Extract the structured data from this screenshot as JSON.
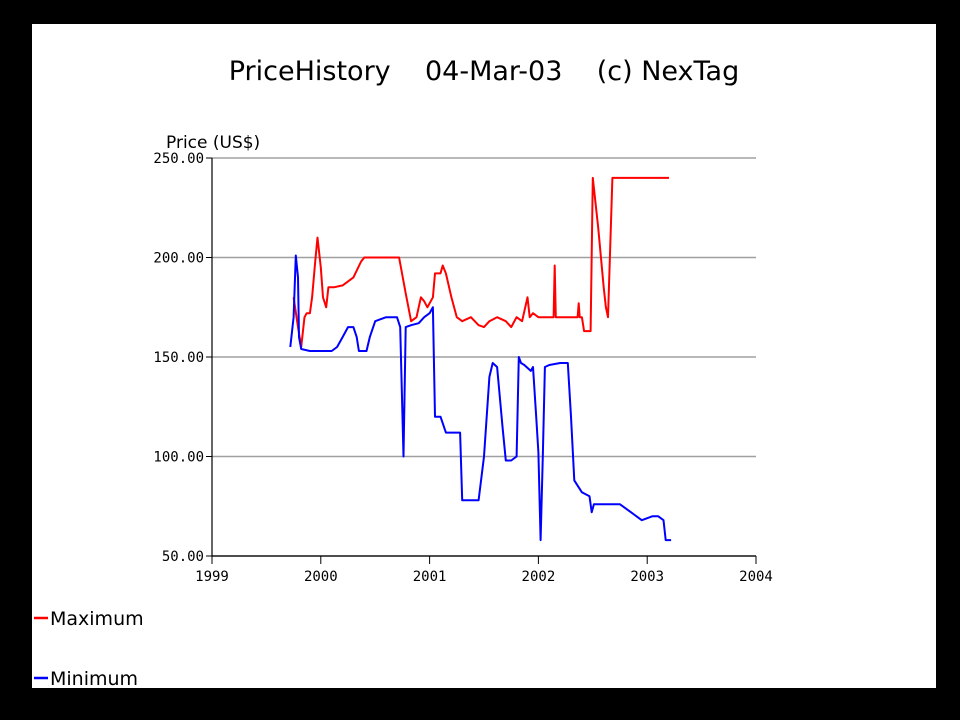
{
  "chart_data": {
    "type": "line",
    "title": "PriceHistory    04-Mar-03    (c) NexTag",
    "ylabel": "Price (US$)",
    "xlabel": "",
    "xlim": [
      1999,
      2004
    ],
    "ylim": [
      50,
      250
    ],
    "x_ticks": [
      "1999",
      "2000",
      "2001",
      "2002",
      "2003",
      "2004"
    ],
    "y_ticks": [
      "50.00",
      "100.00",
      "150.00",
      "200.00",
      "250.00"
    ],
    "grid": true,
    "legend_position": "bottom-left",
    "series": [
      {
        "name": "Maximum",
        "color": "#ff0000",
        "points": [
          [
            1999.75,
            180
          ],
          [
            1999.79,
            165
          ],
          [
            1999.82,
            155
          ],
          [
            1999.85,
            170
          ],
          [
            1999.87,
            172
          ],
          [
            1999.9,
            172
          ],
          [
            1999.92,
            180
          ],
          [
            1999.95,
            199
          ],
          [
            1999.97,
            210
          ],
          [
            2000.0,
            195
          ],
          [
            2000.02,
            180
          ],
          [
            2000.05,
            175
          ],
          [
            2000.07,
            185
          ],
          [
            2000.12,
            185
          ],
          [
            2000.2,
            186
          ],
          [
            2000.3,
            190
          ],
          [
            2000.37,
            198
          ],
          [
            2000.4,
            200
          ],
          [
            2000.5,
            200
          ],
          [
            2000.6,
            200
          ],
          [
            2000.72,
            200
          ],
          [
            2000.78,
            182
          ],
          [
            2000.83,
            168
          ],
          [
            2000.88,
            170
          ],
          [
            2000.92,
            180
          ],
          [
            2000.95,
            178
          ],
          [
            2000.98,
            175
          ],
          [
            2001.03,
            180
          ],
          [
            2001.05,
            192
          ],
          [
            2001.1,
            192
          ],
          [
            2001.12,
            196
          ],
          [
            2001.15,
            192
          ],
          [
            2001.2,
            180
          ],
          [
            2001.25,
            170
          ],
          [
            2001.3,
            168
          ],
          [
            2001.38,
            170
          ],
          [
            2001.45,
            166
          ],
          [
            2001.5,
            165
          ],
          [
            2001.55,
            168
          ],
          [
            2001.62,
            170
          ],
          [
            2001.7,
            168
          ],
          [
            2001.75,
            165
          ],
          [
            2001.8,
            170
          ],
          [
            2001.85,
            168
          ],
          [
            2001.9,
            180
          ],
          [
            2001.92,
            170
          ],
          [
            2001.95,
            172
          ],
          [
            2002.0,
            170
          ],
          [
            2002.1,
            170
          ],
          [
            2002.14,
            170
          ],
          [
            2002.15,
            196
          ],
          [
            2002.16,
            170
          ],
          [
            2002.2,
            170
          ],
          [
            2002.3,
            170
          ],
          [
            2002.36,
            170
          ],
          [
            2002.37,
            177
          ],
          [
            2002.38,
            170
          ],
          [
            2002.4,
            170
          ],
          [
            2002.42,
            163
          ],
          [
            2002.45,
            163
          ],
          [
            2002.48,
            163
          ],
          [
            2002.5,
            240
          ],
          [
            2002.55,
            215
          ],
          [
            2002.6,
            185
          ],
          [
            2002.62,
            175
          ],
          [
            2002.64,
            170
          ],
          [
            2002.66,
            205
          ],
          [
            2002.68,
            240
          ],
          [
            2002.8,
            240
          ],
          [
            2003.0,
            240
          ],
          [
            2003.2,
            240
          ]
        ]
      },
      {
        "name": "Minimum",
        "color": "#0000ff",
        "points": [
          [
            1999.72,
            155
          ],
          [
            1999.75,
            170
          ],
          [
            1999.77,
            201
          ],
          [
            1999.79,
            190
          ],
          [
            1999.8,
            160
          ],
          [
            1999.82,
            154
          ],
          [
            1999.9,
            153
          ],
          [
            2000.0,
            153
          ],
          [
            2000.1,
            153
          ],
          [
            2000.15,
            155
          ],
          [
            2000.2,
            160
          ],
          [
            2000.25,
            165
          ],
          [
            2000.3,
            165
          ],
          [
            2000.33,
            160
          ],
          [
            2000.35,
            153
          ],
          [
            2000.42,
            153
          ],
          [
            2000.45,
            160
          ],
          [
            2000.5,
            168
          ],
          [
            2000.55,
            169
          ],
          [
            2000.6,
            170
          ],
          [
            2000.7,
            170
          ],
          [
            2000.73,
            165
          ],
          [
            2000.76,
            100
          ],
          [
            2000.78,
            165
          ],
          [
            2000.83,
            166
          ],
          [
            2000.9,
            167
          ],
          [
            2000.95,
            170
          ],
          [
            2001.0,
            172
          ],
          [
            2001.03,
            175
          ],
          [
            2001.05,
            120
          ],
          [
            2001.1,
            120
          ],
          [
            2001.15,
            112
          ],
          [
            2001.28,
            112
          ],
          [
            2001.3,
            78
          ],
          [
            2001.45,
            78
          ],
          [
            2001.5,
            100
          ],
          [
            2001.55,
            140
          ],
          [
            2001.58,
            147
          ],
          [
            2001.62,
            145
          ],
          [
            2001.67,
            115
          ],
          [
            2001.7,
            98
          ],
          [
            2001.75,
            98
          ],
          [
            2001.8,
            100
          ],
          [
            2001.82,
            150
          ],
          [
            2001.84,
            147
          ],
          [
            2001.87,
            146
          ],
          [
            2001.93,
            143
          ],
          [
            2001.95,
            145
          ],
          [
            2001.98,
            120
          ],
          [
            2002.0,
            102
          ],
          [
            2002.02,
            58
          ],
          [
            2002.04,
            100
          ],
          [
            2002.06,
            145
          ],
          [
            2002.1,
            146
          ],
          [
            2002.2,
            147
          ],
          [
            2002.27,
            147
          ],
          [
            2002.3,
            120
          ],
          [
            2002.33,
            88
          ],
          [
            2002.4,
            82
          ],
          [
            2002.47,
            80
          ],
          [
            2002.49,
            72
          ],
          [
            2002.51,
            76
          ],
          [
            2002.6,
            76
          ],
          [
            2002.75,
            76
          ],
          [
            2002.85,
            72
          ],
          [
            2002.95,
            68
          ],
          [
            2003.05,
            70
          ],
          [
            2003.1,
            70
          ],
          [
            2003.15,
            68
          ],
          [
            2003.17,
            58
          ],
          [
            2003.22,
            58
          ]
        ]
      }
    ]
  }
}
